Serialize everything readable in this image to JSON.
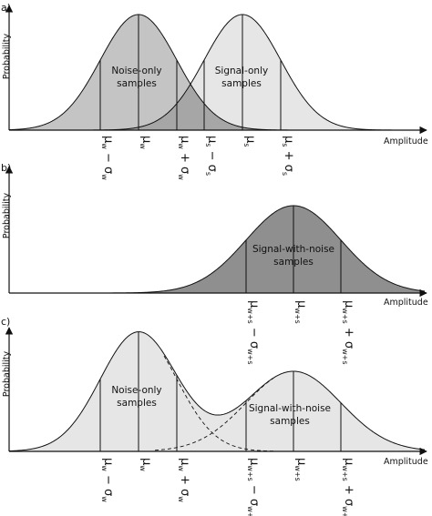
{
  "figure": {
    "panels": [
      {
        "id": "a",
        "label": "a)",
        "ylabel": "Probability",
        "xlabel": "Amplitude",
        "regions": [
          {
            "name": "Noise-only",
            "line1": "Noise-only",
            "line2": "samples"
          },
          {
            "name": "Signal-only",
            "line1": "Signal-only",
            "line2": "samples"
          }
        ],
        "ticks": [
          {
            "main": "μ",
            "sub": "w",
            "op": "−",
            "sig": "σ",
            "sig_sub": "w"
          },
          {
            "main": "μ",
            "sub": "w"
          },
          {
            "main": "μ",
            "sub": "w",
            "op": "+",
            "sig": "σ",
            "sig_sub": "w"
          },
          {
            "main": "μ",
            "sub": "s",
            "op": "−",
            "sig": "σ",
            "sig_sub": "s"
          },
          {
            "main": "μ",
            "sub": "s"
          },
          {
            "main": "μ",
            "sub": "s",
            "op": "+",
            "sig": "σ",
            "sig_sub": "s"
          }
        ]
      },
      {
        "id": "b",
        "label": "b)",
        "ylabel": "Probability",
        "xlabel": "Amplitude",
        "regions": [
          {
            "name": "Signal-with-noise",
            "line1": "Signal-with-noise",
            "line2": "samples"
          }
        ],
        "ticks": [
          {
            "main": "μ",
            "sub": "w+s",
            "op": "−",
            "sig": "σ",
            "sig_sub": "w+s"
          },
          {
            "main": "μ",
            "sub": "w+s"
          },
          {
            "main": "μ",
            "sub": "w+s",
            "op": "+",
            "sig": "σ",
            "sig_sub": "w+s"
          }
        ]
      },
      {
        "id": "c",
        "label": "c)",
        "ylabel": "Probability",
        "xlabel": "Amplitude",
        "regions": [
          {
            "name": "Noise-only",
            "line1": "Noise-only",
            "line2": "samples"
          },
          {
            "name": "Signal-with-noise",
            "line1": "Signal-with-noise",
            "line2": "samples"
          }
        ],
        "ticks": [
          {
            "main": "μ",
            "sub": "w",
            "op": "−",
            "sig": "σ",
            "sig_sub": "w"
          },
          {
            "main": "μ",
            "sub": "w"
          },
          {
            "main": "μ",
            "sub": "w",
            "op": "+",
            "sig": "σ",
            "sig_sub": "w"
          },
          {
            "main": "μ",
            "sub": "w+s",
            "op": "−",
            "sig": "σ",
            "sig_sub": "w+s"
          },
          {
            "main": "μ",
            "sub": "w+s"
          },
          {
            "main": "μ",
            "sub": "w+s",
            "op": "+",
            "sig": "σ",
            "sig_sub": "w+s"
          }
        ]
      }
    ],
    "colors": {
      "noise_fill": "#c4c4c4",
      "signal_fill": "#e6e6e6",
      "overlap_fill": "#a6a6a6",
      "swn_fill": "#8f8f8f",
      "mixture_fill": "#e6e6e6",
      "stroke": "#111111"
    }
  }
}
